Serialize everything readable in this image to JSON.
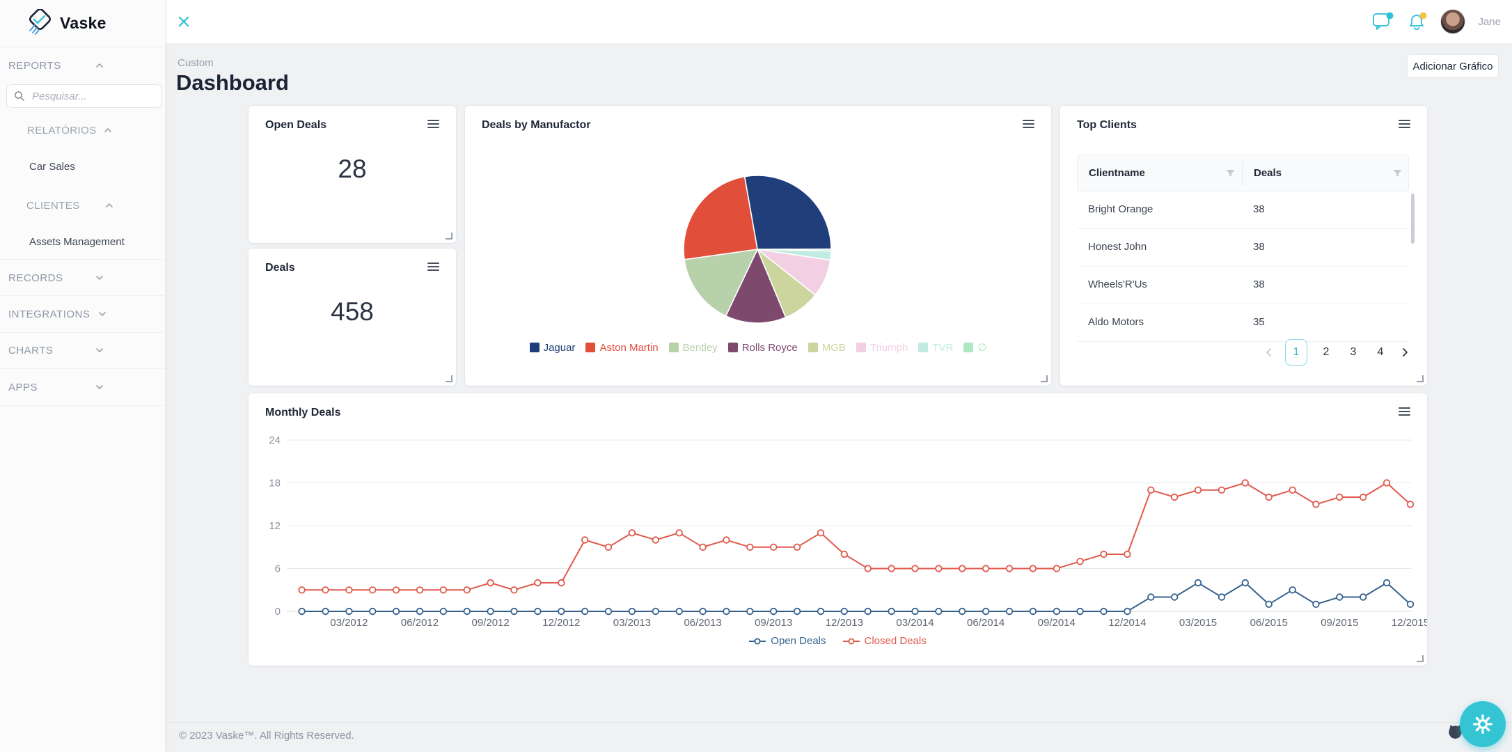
{
  "brand": {
    "name": "Vaske"
  },
  "sidebar": {
    "reports": "REPORTS",
    "search_placeholder": "Pesquisar...",
    "relatorios": "RELATÓRIOS",
    "car_sales": "Car Sales",
    "clientes": "CLIENTES",
    "assets": "Assets Management",
    "records": "RECORDS",
    "integrations": "INTEGRATIONS",
    "charts": "CHARTS",
    "apps": "APPS"
  },
  "topbar": {
    "user_name": "Jane"
  },
  "page": {
    "breadcrumb": "Custom",
    "title": "Dashboard",
    "add_chart_button": "Adicionar Gráfico"
  },
  "cards": {
    "open_deals": {
      "title": "Open Deals",
      "value": "28"
    },
    "deals": {
      "title": "Deals",
      "value": "458"
    },
    "pie": {
      "title": "Deals by Manufactor"
    },
    "top_clients": {
      "title": "Top Clients",
      "columns": [
        "Clientname",
        "Deals"
      ],
      "rows": [
        [
          "Bright Orange",
          "38"
        ],
        [
          "Honest John",
          "38"
        ],
        [
          "Wheels'R'Us",
          "38"
        ],
        [
          "Aldo Motors",
          "35"
        ]
      ],
      "pagination": {
        "pages": [
          "1",
          "2",
          "3",
          "4"
        ],
        "current": "1"
      }
    },
    "monthly": {
      "title": "Monthly Deals"
    }
  },
  "chart_data": [
    {
      "type": "pie",
      "title": "Deals by Manufactor",
      "labels": [
        "Jaguar",
        "Aston Martin",
        "Bentley",
        "Rolls Royce",
        "MGB",
        "Triumph",
        "TVR",
        "∅"
      ],
      "values": [
        127,
        112,
        72,
        61,
        37,
        38,
        9,
        2
      ],
      "colors": [
        "#1f3e7a",
        "#e14f3b",
        "#b7d1ab",
        "#7d4a6e",
        "#ccd59e",
        "#f2cfe3",
        "#bfebe1",
        "#aee8c3"
      ],
      "start_angle_deg": -10,
      "legend_position": "bottom"
    },
    {
      "type": "line",
      "title": "Monthly Deals",
      "x": [
        "01/2012",
        "02/2012",
        "03/2012",
        "04/2012",
        "05/2012",
        "06/2012",
        "07/2012",
        "08/2012",
        "09/2012",
        "10/2012",
        "11/2012",
        "12/2012",
        "01/2013",
        "02/2013",
        "03/2013",
        "04/2013",
        "05/2013",
        "06/2013",
        "07/2013",
        "08/2013",
        "09/2013",
        "10/2013",
        "11/2013",
        "12/2013",
        "01/2014",
        "02/2014",
        "03/2014",
        "04/2014",
        "05/2014",
        "06/2014",
        "07/2014",
        "08/2014",
        "09/2014",
        "10/2014",
        "11/2014",
        "12/2014",
        "01/2015",
        "02/2015",
        "03/2015",
        "04/2015",
        "05/2015",
        "06/2015",
        "07/2015",
        "08/2015",
        "09/2015",
        "10/2015",
        "11/2015",
        "12/2015"
      ],
      "x_tick_start_index": 2,
      "x_tick_step": 3,
      "series": [
        {
          "name": "Open Deals",
          "color": "#35618e",
          "values": [
            0,
            0,
            0,
            0,
            0,
            0,
            0,
            0,
            0,
            0,
            0,
            0,
            0,
            0,
            0,
            0,
            0,
            0,
            0,
            0,
            0,
            0,
            0,
            0,
            0,
            0,
            0,
            0,
            0,
            0,
            0,
            0,
            0,
            0,
            0,
            0,
            2,
            2,
            4,
            2,
            4,
            1,
            3,
            1,
            2,
            2,
            4,
            1
          ]
        },
        {
          "name": "Closed Deals",
          "color": "#e0584b",
          "values": [
            3,
            3,
            3,
            3,
            3,
            3,
            3,
            3,
            4,
            3,
            4,
            4,
            10,
            9,
            11,
            10,
            11,
            9,
            10,
            9,
            9,
            9,
            11,
            8,
            6,
            6,
            6,
            6,
            6,
            6,
            6,
            6,
            6,
            7,
            8,
            8,
            17,
            16,
            17,
            17,
            18,
            16,
            17,
            15,
            16,
            16,
            18,
            15
          ]
        }
      ],
      "ylim": [
        0,
        24
      ],
      "yticks": [
        0,
        6,
        12,
        18,
        24
      ],
      "grid": true,
      "legend_position": "bottom"
    }
  ],
  "footer": {
    "copyright": "© 2023 Vaske™. All Rights Reserved."
  }
}
